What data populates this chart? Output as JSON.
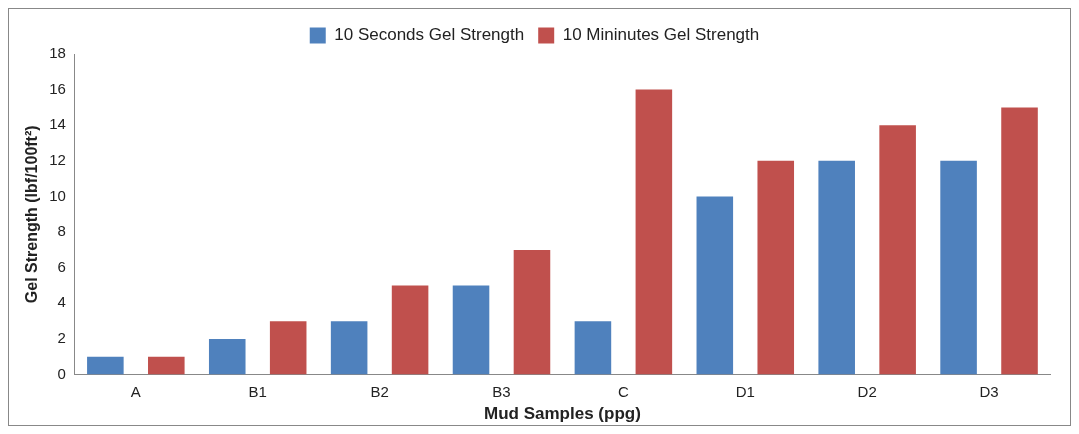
{
  "chart_data": {
    "type": "bar",
    "xlabel": "Mud Samples (ppg)",
    "ylabel": "Gel Strength (lbf/100ft²)",
    "categories": [
      "A",
      "B1",
      "B2",
      "B3",
      "C",
      "D1",
      "D2",
      "D3"
    ],
    "series": [
      {
        "name": "10 Seconds Gel Strength",
        "color": "#4f81bd",
        "values": [
          1,
          2,
          3,
          5,
          3,
          10,
          12,
          12
        ]
      },
      {
        "name": "10 Mininutes Gel Strength",
        "color": "#c0504d",
        "values": [
          1,
          3,
          5,
          7,
          16,
          12,
          14,
          15
        ]
      }
    ],
    "ylim": [
      0,
      18
    ],
    "yticks": [
      0,
      2,
      4,
      6,
      8,
      10,
      12,
      14,
      16,
      18
    ],
    "grid": false,
    "legend": "top"
  }
}
